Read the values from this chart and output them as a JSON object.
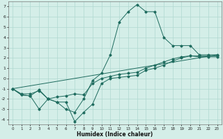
{
  "xlabel": "Humidex (Indice chaleur)",
  "xlim": [
    -0.5,
    23.5
  ],
  "ylim": [
    -4.5,
    7.5
  ],
  "xticks": [
    0,
    1,
    2,
    3,
    4,
    5,
    6,
    7,
    8,
    9,
    10,
    11,
    12,
    13,
    14,
    15,
    16,
    17,
    18,
    19,
    20,
    21,
    22,
    23
  ],
  "yticks": [
    -4,
    -3,
    -2,
    -1,
    0,
    1,
    2,
    3,
    4,
    5,
    6,
    7
  ],
  "bg_color": "#d4eee8",
  "grid_color": "#b0d8d0",
  "line_color": "#1e6b5e",
  "series_max": [
    -1.0,
    -1.5,
    -1.5,
    -1.2,
    -2.0,
    -2.3,
    -3.0,
    -3.3,
    -2.0,
    -0.2,
    0.5,
    2.3,
    5.5,
    6.5,
    7.2,
    6.5,
    6.5,
    4.0,
    3.2,
    3.2,
    3.2,
    2.3,
    2.3,
    2.3
  ],
  "series_mean": [
    -1.0,
    -1.6,
    -1.7,
    -1.1,
    -2.0,
    -1.8,
    -1.7,
    -1.5,
    -1.6,
    -0.5,
    0.0,
    0.2,
    0.4,
    0.5,
    0.6,
    1.0,
    1.3,
    1.6,
    1.9,
    2.1,
    2.2,
    2.2,
    2.2,
    2.2
  ],
  "series_min": [
    -1.0,
    -1.6,
    -1.7,
    -3.0,
    -2.0,
    -2.3,
    -2.3,
    -4.2,
    -3.3,
    -2.5,
    -0.5,
    0.0,
    0.1,
    0.2,
    0.3,
    0.8,
    1.0,
    1.3,
    1.7,
    2.0,
    2.2,
    2.1,
    2.1,
    2.1
  ],
  "trend_x": [
    0,
    23
  ],
  "trend_y": [
    -1.0,
    2.3
  ]
}
